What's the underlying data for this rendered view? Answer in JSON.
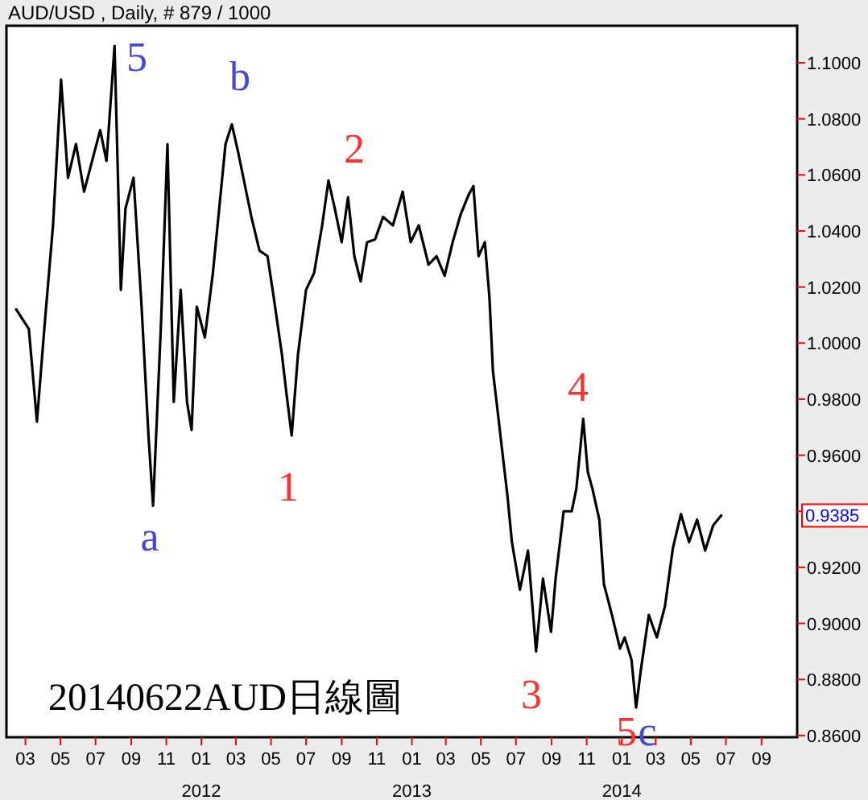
{
  "chart_data": {
    "type": "line",
    "title": "AUD/USD , Daily, # 879 / 1000",
    "xlim": [
      "2011-01-27",
      "2014-11-02"
    ],
    "ylim": [
      0.8594,
      1.1132
    ],
    "yticks": [
      {
        "value": 0.86,
        "label": "0.8600"
      },
      {
        "value": 0.88,
        "label": "0.8800"
      },
      {
        "value": 0.9,
        "label": "0.9000"
      },
      {
        "value": 0.92,
        "label": "0.9200"
      },
      {
        "value": 0.94,
        "label": null
      },
      {
        "value": 0.96,
        "label": "0.9600"
      },
      {
        "value": 0.98,
        "label": "0.9800"
      },
      {
        "value": 1.0,
        "label": "1.0000"
      },
      {
        "value": 1.02,
        "label": "1.0200"
      },
      {
        "value": 1.04,
        "label": "1.0400"
      },
      {
        "value": 1.06,
        "label": "1.0600"
      },
      {
        "value": 1.08,
        "label": "1.0800"
      },
      {
        "value": 1.1,
        "label": "1.1000"
      }
    ],
    "xticks": [
      {
        "value": "2011-03",
        "label": "03"
      },
      {
        "value": "2011-05",
        "label": "05"
      },
      {
        "value": "2011-07",
        "label": "07"
      },
      {
        "value": "2011-09",
        "label": "09"
      },
      {
        "value": "2011-11",
        "label": "11"
      },
      {
        "value": "2012-01",
        "label": "01\n2012"
      },
      {
        "value": "2012-03",
        "label": "03"
      },
      {
        "value": "2012-05",
        "label": "05"
      },
      {
        "value": "2012-07",
        "label": "07"
      },
      {
        "value": "2012-09",
        "label": "09"
      },
      {
        "value": "2012-11",
        "label": "11"
      },
      {
        "value": "2013-01",
        "label": "01\n2013"
      },
      {
        "value": "2013-03",
        "label": "03"
      },
      {
        "value": "2013-05",
        "label": "05"
      },
      {
        "value": "2013-07",
        "label": "07"
      },
      {
        "value": "2013-09",
        "label": "09"
      },
      {
        "value": "2013-11",
        "label": "11"
      },
      {
        "value": "2014-01",
        "label": "01\n2014"
      },
      {
        "value": "2014-03",
        "label": "03"
      },
      {
        "value": "2014-05",
        "label": "05"
      },
      {
        "value": "2014-07",
        "label": "07"
      },
      {
        "value": "2014-09",
        "label": "09"
      }
    ],
    "grid": false,
    "series": [
      {
        "color": "#000000",
        "x": [
          "2011-02-13",
          "2011-03-07",
          "2011-03-21",
          "2011-04-04",
          "2011-04-18",
          "2011-05-02",
          "2011-05-14",
          "2011-05-28",
          "2011-06-11",
          "2011-06-25",
          "2011-07-09",
          "2011-07-20",
          "2011-08-03",
          "2011-08-14",
          "2011-08-22",
          "2011-09-05",
          "2011-09-19",
          "2011-10-01",
          "2011-10-09",
          "2011-10-23",
          "2011-11-03",
          "2011-11-14",
          "2011-11-26",
          "2011-12-07",
          "2011-12-15",
          "2011-12-24",
          "2012-01-07",
          "2012-01-21",
          "2012-02-01",
          "2012-02-12",
          "2012-02-23",
          "2012-03-05",
          "2012-03-17",
          "2012-03-28",
          "2012-04-11",
          "2012-04-25",
          "2012-05-06",
          "2012-05-20",
          "2012-05-28",
          "2012-06-06",
          "2012-06-17",
          "2012-07-01",
          "2012-07-15",
          "2012-07-29",
          "2012-08-09",
          "2012-08-20",
          "2012-09-01",
          "2012-09-12",
          "2012-09-23",
          "2012-10-04",
          "2012-10-15",
          "2012-10-29",
          "2012-11-12",
          "2012-11-29",
          "2012-12-16",
          "2012-12-30",
          "2013-01-13",
          "2013-01-30",
          "2013-02-13",
          "2013-02-27",
          "2013-03-13",
          "2013-03-27",
          "2013-04-10",
          "2013-04-18",
          "2013-04-27",
          "2013-05-08",
          "2013-05-16",
          "2013-05-22",
          "2013-05-30",
          "2013-06-08",
          "2013-06-16",
          "2013-06-24",
          "2013-07-08",
          "2013-07-22",
          "2013-08-05",
          "2013-08-17",
          "2013-08-31",
          "2013-09-08",
          "2013-09-22",
          "2013-10-06",
          "2013-10-14",
          "2013-10-26",
          "2013-11-03",
          "2013-11-11",
          "2013-11-23",
          "2013-12-01",
          "2013-12-15",
          "2013-12-29",
          "2014-01-06",
          "2014-01-18",
          "2014-01-26",
          "2014-02-03",
          "2014-02-17",
          "2014-03-03",
          "2014-03-17",
          "2014-03-31",
          "2014-04-14",
          "2014-04-28",
          "2014-05-12",
          "2014-05-26",
          "2014-06-09",
          "2014-06-23"
        ],
        "values": [
          1.012,
          1.005,
          0.972,
          1.008,
          1.042,
          1.094,
          1.059,
          1.071,
          1.054,
          1.065,
          1.076,
          1.065,
          1.106,
          1.019,
          1.048,
          1.059,
          1.013,
          0.967,
          0.942,
          1.008,
          1.071,
          0.979,
          1.019,
          0.979,
          0.969,
          1.013,
          1.002,
          1.025,
          1.048,
          1.071,
          1.078,
          1.068,
          1.056,
          1.045,
          1.033,
          1.031,
          1.016,
          0.996,
          0.982,
          0.967,
          0.996,
          1.019,
          1.025,
          1.042,
          1.058,
          1.048,
          1.036,
          1.052,
          1.031,
          1.022,
          1.036,
          1.037,
          1.045,
          1.042,
          1.054,
          1.036,
          1.042,
          1.028,
          1.031,
          1.024,
          1.036,
          1.046,
          1.053,
          1.056,
          1.031,
          1.036,
          1.016,
          0.99,
          0.976,
          0.96,
          0.946,
          0.929,
          0.912,
          0.926,
          0.89,
          0.916,
          0.897,
          0.916,
          0.94,
          0.94,
          0.948,
          0.973,
          0.954,
          0.948,
          0.937,
          0.914,
          0.903,
          0.891,
          0.895,
          0.887,
          0.87,
          0.883,
          0.903,
          0.895,
          0.906,
          0.927,
          0.939,
          0.929,
          0.937,
          0.926,
          0.935,
          0.9385
        ]
      }
    ],
    "annotations": [
      "5",
      "b",
      "2",
      "a",
      "1",
      "4",
      "3",
      "5",
      "c",
      "0.9385",
      "20140622AUD日線圖"
    ]
  }
}
